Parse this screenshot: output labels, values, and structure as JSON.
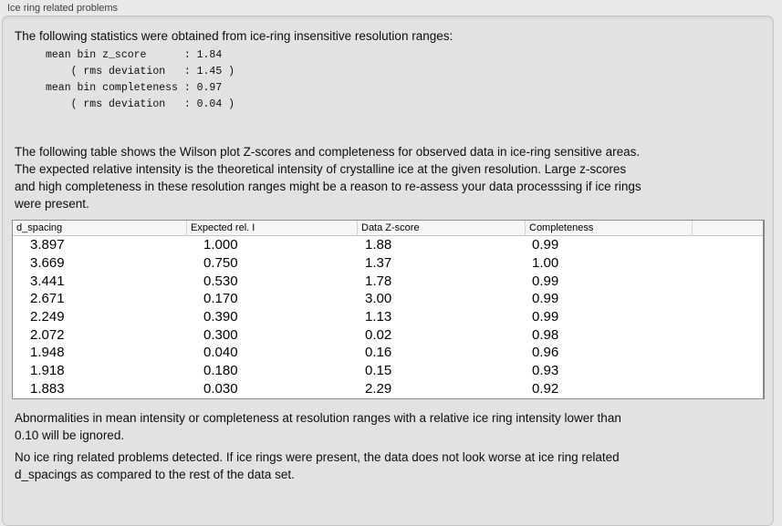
{
  "panel": {
    "title": "Ice ring related problems"
  },
  "intro_text": "The following statistics were obtained from ice-ring insensitive resolution ranges:",
  "stats_block": "mean bin z_score      : 1.84\n    ( rms deviation   : 1.45 )\nmean bin completeness : 0.97\n    ( rms deviation   : 0.04 )",
  "stats": {
    "mean_bin_z_score": "1.84",
    "z_score_rms_deviation": "1.45",
    "mean_bin_completeness": "0.97",
    "completeness_rms_deviation": "0.04"
  },
  "description_text": "The following table shows the Wilson plot Z-scores and completeness for observed data in ice-ring sensitive areas.\nThe expected relative intensity is the theoretical intensity of crystalline ice at the given resolution. Large z-scores\nand high completeness in these resolution ranges might be a reason to re-assess your data processsing if ice rings\nwere present.",
  "table": {
    "columns": [
      "d_spacing",
      "Expected rel. I",
      "Data Z-score",
      "Completeness",
      ""
    ],
    "rows": [
      [
        "3.897",
        "1.000",
        "1.88",
        "0.99"
      ],
      [
        "3.669",
        "0.750",
        "1.37",
        "1.00"
      ],
      [
        "3.441",
        "0.530",
        "1.78",
        "0.99"
      ],
      [
        "2.671",
        "0.170",
        "3.00",
        "0.99"
      ],
      [
        "2.249",
        "0.390",
        "1.13",
        "0.99"
      ],
      [
        "2.072",
        "0.300",
        "0.02",
        "0.98"
      ],
      [
        "1.948",
        "0.040",
        "0.16",
        "0.96"
      ],
      [
        "1.918",
        "0.180",
        "0.15",
        "0.93"
      ],
      [
        "1.883",
        "0.030",
        "2.29",
        "0.92"
      ]
    ]
  },
  "ignore_note_text": "Abnormalities in mean intensity or completeness at resolution ranges with a relative ice ring intensity lower than\n0.10 will be ignored.",
  "conclusion_text": "No ice ring related problems detected. If ice rings were present, the data does not look worse at ice ring related\nd_spacings as compared to the rest of the data set."
}
